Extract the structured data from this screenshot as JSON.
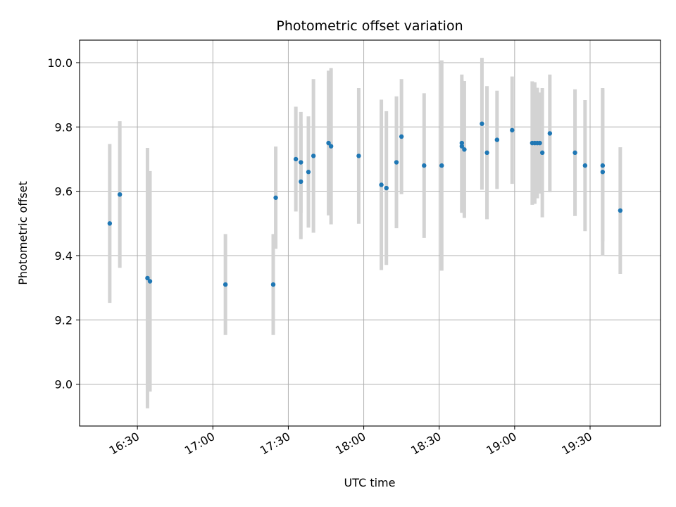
{
  "chart_data": {
    "type": "scatter",
    "title": "Photometric offset variation",
    "xlabel": "UTC time",
    "ylabel": "Photometric offset",
    "x_ticks": [
      "16:30",
      "17:00",
      "17:30",
      "18:00",
      "18:30",
      "19:00",
      "19:30"
    ],
    "y_ticks": [
      "9.0",
      "9.2",
      "9.4",
      "9.6",
      "9.8",
      "10.0"
    ],
    "xlim": [
      "16:07",
      "19:58"
    ],
    "ylim": [
      8.87,
      10.07
    ],
    "grid": true,
    "colors": {
      "points": "#1f77b4",
      "errorbars": "#d3d3d3",
      "grid": "#b0b0b0"
    },
    "points": [
      {
        "time": "16:19",
        "y": 9.5,
        "err": 0.247
      },
      {
        "time": "16:23",
        "y": 9.59,
        "err": 0.228
      },
      {
        "time": "16:34",
        "y": 9.33,
        "err": 0.405
      },
      {
        "time": "16:35",
        "y": 9.32,
        "err": 0.343
      },
      {
        "time": "17:05",
        "y": 9.31,
        "err": 0.157
      },
      {
        "time": "17:24",
        "y": 9.31,
        "err": 0.157
      },
      {
        "time": "17:25",
        "y": 9.58,
        "err": 0.159
      },
      {
        "time": "17:33",
        "y": 9.7,
        "err": 0.163
      },
      {
        "time": "17:35",
        "y": 9.63,
        "err": 0.179
      },
      {
        "time": "17:35",
        "y": 9.69,
        "err": 0.157
      },
      {
        "time": "17:38",
        "y": 9.66,
        "err": 0.173
      },
      {
        "time": "17:40",
        "y": 9.71,
        "err": 0.239
      },
      {
        "time": "17:46",
        "y": 9.75,
        "err": 0.225
      },
      {
        "time": "17:47",
        "y": 9.74,
        "err": 0.243
      },
      {
        "time": "17:58",
        "y": 9.71,
        "err": 0.211
      },
      {
        "time": "18:07",
        "y": 9.62,
        "err": 0.265
      },
      {
        "time": "18:09",
        "y": 9.61,
        "err": 0.239
      },
      {
        "time": "18:13",
        "y": 9.69,
        "err": 0.205
      },
      {
        "time": "18:15",
        "y": 9.77,
        "err": 0.179
      },
      {
        "time": "18:24",
        "y": 9.68,
        "err": 0.225
      },
      {
        "time": "18:31",
        "y": 9.68,
        "err": 0.327
      },
      {
        "time": "18:39",
        "y": 9.75,
        "err": 0.213
      },
      {
        "time": "18:39",
        "y": 9.74,
        "err": 0.207
      },
      {
        "time": "18:40",
        "y": 9.73,
        "err": 0.213
      },
      {
        "time": "18:47",
        "y": 9.81,
        "err": 0.205
      },
      {
        "time": "18:49",
        "y": 9.72,
        "err": 0.207
      },
      {
        "time": "18:53",
        "y": 9.76,
        "err": 0.153
      },
      {
        "time": "18:59",
        "y": 9.79,
        "err": 0.167
      },
      {
        "time": "19:07",
        "y": 9.75,
        "err": 0.192
      },
      {
        "time": "19:08",
        "y": 9.75,
        "err": 0.189
      },
      {
        "time": "19:09",
        "y": 9.75,
        "err": 0.172
      },
      {
        "time": "19:10",
        "y": 9.75,
        "err": 0.157
      },
      {
        "time": "19:11",
        "y": 9.72,
        "err": 0.201
      },
      {
        "time": "19:14",
        "y": 9.78,
        "err": 0.183
      },
      {
        "time": "19:24",
        "y": 9.72,
        "err": 0.197
      },
      {
        "time": "19:28",
        "y": 9.68,
        "err": 0.204
      },
      {
        "time": "19:35",
        "y": 9.66,
        "err": 0.261
      },
      {
        "time": "19:35",
        "y": 9.68,
        "err": 0.236
      },
      {
        "time": "19:42",
        "y": 9.54,
        "err": 0.197
      }
    ]
  }
}
